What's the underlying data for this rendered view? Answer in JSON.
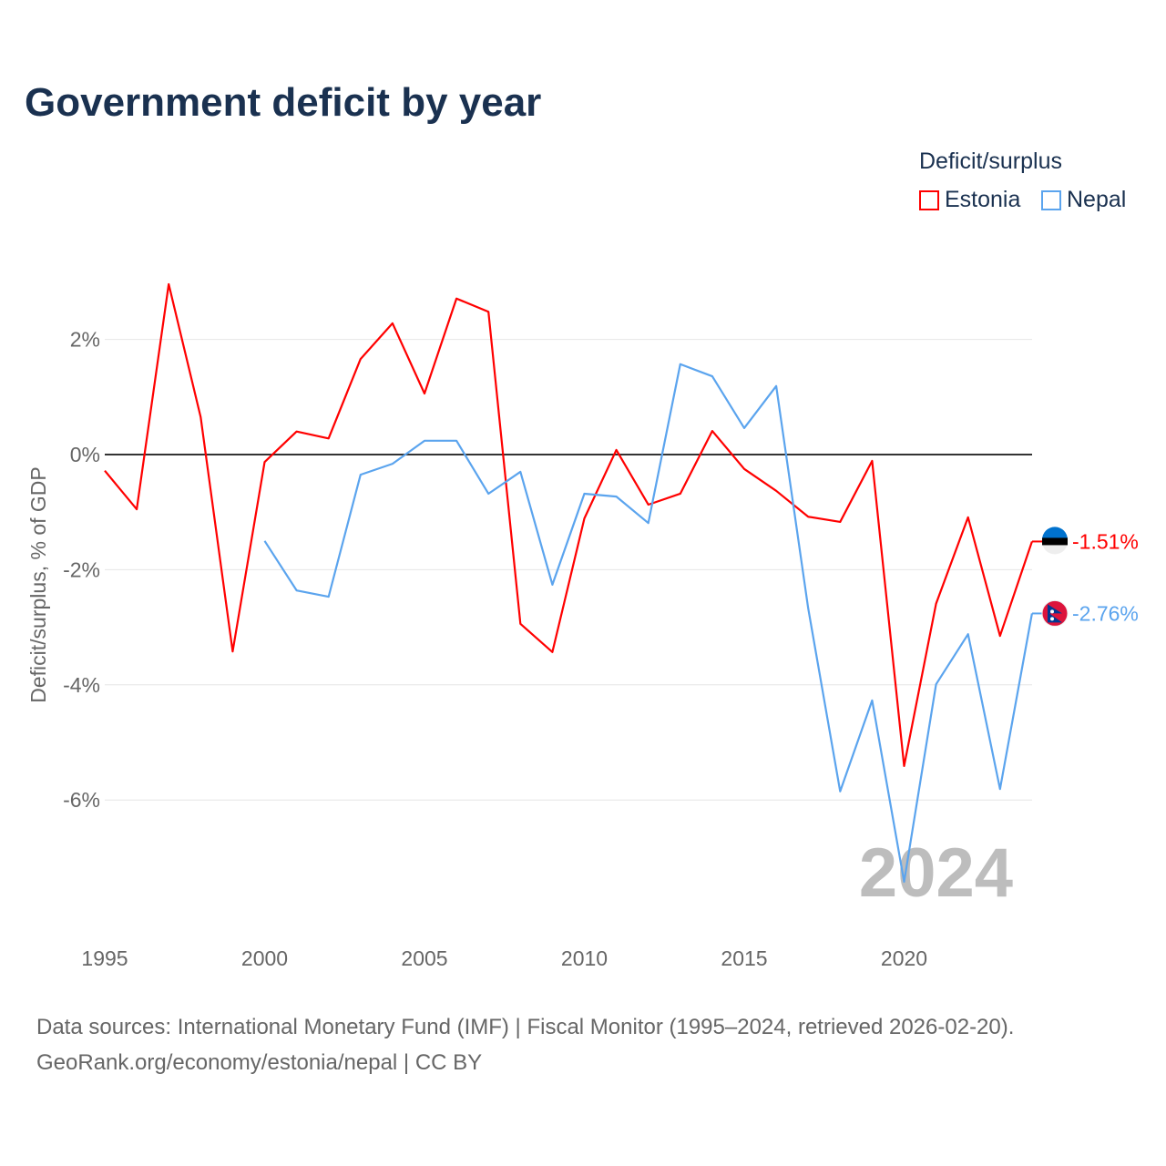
{
  "title": "Government deficit by year",
  "legend": {
    "title": "Deficit/surplus",
    "items": [
      "Estonia",
      "Nepal"
    ]
  },
  "source_line1": "Data sources: International Monetary Fund (IMF) | Fiscal Monitor (1995–2024, retrieved 2026-02-20).",
  "source_line2": "GeoRank.org/economy/estonia/nepal | CC BY",
  "chart_data": {
    "type": "line",
    "title": "Government deficit by year",
    "ylabel": "Deficit/surplus, % of GDP",
    "xlabel": "",
    "year_watermark": "2024",
    "xlim": [
      1995,
      2024
    ],
    "ylim": [
      -8.1,
      3.3
    ],
    "yticks": [
      {
        "v": 2,
        "label": "2%"
      },
      {
        "v": 0,
        "label": "0%"
      },
      {
        "v": -2,
        "label": "-2%"
      },
      {
        "v": -4,
        "label": "-4%"
      },
      {
        "v": -6,
        "label": "-6%"
      }
    ],
    "xticks": [
      1995,
      2000,
      2005,
      2010,
      2015,
      2020
    ],
    "series": [
      {
        "name": "Estonia",
        "color": "#ff0000",
        "end_label": "-1.51%",
        "x": [
          1995,
          1996,
          1997,
          1998,
          1999,
          2000,
          2001,
          2002,
          2003,
          2004,
          2005,
          2006,
          2007,
          2008,
          2009,
          2010,
          2011,
          2012,
          2013,
          2014,
          2015,
          2016,
          2017,
          2018,
          2019,
          2020,
          2021,
          2022,
          2023,
          2024
        ],
        "values": [
          -0.28,
          -0.95,
          2.96,
          0.65,
          -3.42,
          -0.13,
          0.4,
          0.28,
          1.66,
          2.28,
          1.06,
          2.71,
          2.48,
          -2.94,
          -3.43,
          -1.11,
          0.08,
          -0.87,
          -0.68,
          0.41,
          -0.25,
          -0.63,
          -1.08,
          -1.17,
          -0.11,
          -5.41,
          -2.59,
          -1.09,
          -3.15,
          -1.51
        ]
      },
      {
        "name": "Nepal",
        "color": "#5ba4ee",
        "end_label": "-2.76%",
        "x": [
          2000,
          2001,
          2002,
          2003,
          2004,
          2005,
          2006,
          2007,
          2008,
          2009,
          2010,
          2011,
          2012,
          2013,
          2014,
          2015,
          2016,
          2017,
          2018,
          2019,
          2020,
          2021,
          2022,
          2023,
          2024
        ],
        "values": [
          -1.5,
          -2.36,
          -2.47,
          -0.35,
          -0.16,
          0.24,
          0.24,
          -0.68,
          -0.3,
          -2.26,
          -0.68,
          -0.73,
          -1.19,
          1.57,
          1.36,
          0.46,
          1.19,
          -2.67,
          -5.85,
          -4.27,
          -7.42,
          -3.99,
          -3.12,
          -5.81,
          -2.76
        ]
      }
    ],
    "grid": true,
    "legend_position": "top-right"
  }
}
